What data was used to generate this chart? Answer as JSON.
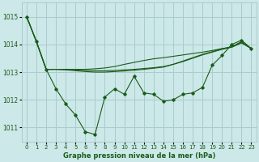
{
  "title": "Graphe pression niveau de la mer (hPa)",
  "bg_color": "#cce8e8",
  "grid_color": "#aacccc",
  "line_color": "#1a5c1a",
  "x_ticks": [
    0,
    1,
    2,
    3,
    4,
    5,
    6,
    7,
    8,
    9,
    10,
    11,
    12,
    13,
    14,
    15,
    16,
    17,
    18,
    19,
    20,
    21,
    22,
    23
  ],
  "ylim": [
    1010.5,
    1015.5
  ],
  "yticks": [
    1011,
    1012,
    1013,
    1014,
    1015
  ],
  "hourly": [
    1015.0,
    1014.1,
    1013.1,
    1012.4,
    1011.85,
    1011.45,
    1010.85,
    1010.75,
    1012.1,
    1012.4,
    1012.2,
    1012.85,
    1012.25,
    1012.2,
    1011.95,
    1012.0,
    1012.2,
    1012.25,
    1012.45,
    1013.25,
    1013.6,
    1014.0,
    1014.15,
    1013.85
  ],
  "smooth1": [
    1015.0,
    1014.1,
    1013.1,
    1013.1,
    1013.1,
    1013.1,
    1013.1,
    1013.12,
    1013.15,
    1013.2,
    1013.28,
    1013.35,
    1013.42,
    1013.48,
    1013.52,
    1013.57,
    1013.62,
    1013.67,
    1013.72,
    1013.78,
    1013.85,
    1013.9,
    1014.05,
    1013.85
  ],
  "smooth2": [
    1015.0,
    1014.1,
    1013.1,
    1013.1,
    1013.1,
    1013.08,
    1013.06,
    1013.05,
    1013.05,
    1013.06,
    1013.08,
    1013.1,
    1013.13,
    1013.16,
    1013.2,
    1013.28,
    1013.38,
    1013.5,
    1013.62,
    1013.72,
    1013.82,
    1013.9,
    1014.08,
    1013.85
  ],
  "smooth3": [
    1015.0,
    1014.1,
    1013.1,
    1013.1,
    1013.08,
    1013.05,
    1013.02,
    1013.0,
    1013.0,
    1013.02,
    1013.04,
    1013.07,
    1013.1,
    1013.14,
    1013.18,
    1013.28,
    1013.4,
    1013.52,
    1013.64,
    1013.74,
    1013.84,
    1013.92,
    1014.1,
    1013.85
  ]
}
